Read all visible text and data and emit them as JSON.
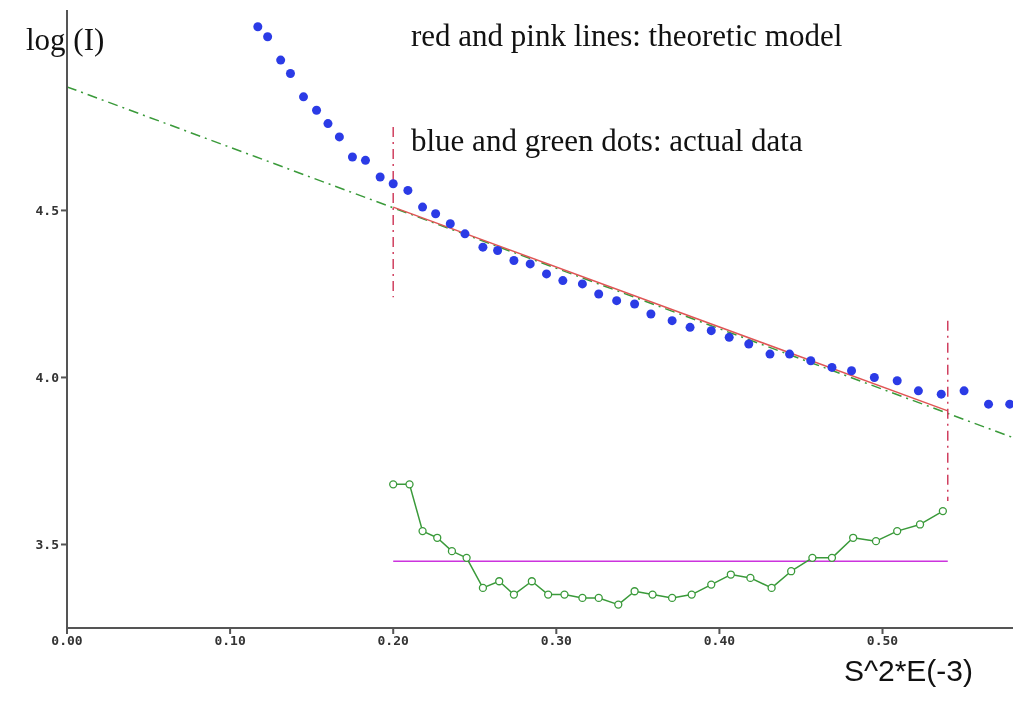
{
  "chart_data": {
    "type": "line",
    "xlabel": "S^2*E(-3)",
    "ylabel": "log (I)",
    "annotations": [
      "red and pink lines: theoretic model",
      "blue and green dots: actual data"
    ],
    "xlim": [
      0,
      0.58
    ],
    "ylim": [
      3.25,
      5.1
    ],
    "xticks": [
      {
        "value": 0,
        "label": "0.00"
      },
      {
        "value": 0.1,
        "label": "0.10"
      },
      {
        "value": 0.2,
        "label": "0.20"
      },
      {
        "value": 0.3,
        "label": "0.30"
      },
      {
        "value": 0.4,
        "label": "0.40"
      },
      {
        "value": 0.5,
        "label": "0.50"
      }
    ],
    "yticks": [
      3.5,
      {
        "value": 4,
        "label": "4.0"
      },
      4.5
    ],
    "grid": false,
    "series": [
      {
        "type": "line",
        "color": "#3a9a3a",
        "line_style": "dashed",
        "marker": "none",
        "x": [
          0,
          0.58
        ],
        "values": [
          4.87,
          3.82
        ]
      },
      {
        "type": "line",
        "color": "#e05555",
        "line_style": "solid",
        "marker": "none",
        "x": [
          0.2,
          0.54
        ],
        "values": [
          4.51,
          3.9
        ]
      },
      {
        "type": "line",
        "color": "#d04060",
        "line_style": "dashed",
        "marker": "none",
        "x": [
          0.2,
          0.2
        ],
        "values": [
          4.75,
          4.24
        ]
      },
      {
        "type": "line",
        "color": "#d04060",
        "line_style": "dashed",
        "marker": "none",
        "x": [
          0.54,
          0.54
        ],
        "values": [
          4.17,
          3.63
        ]
      },
      {
        "type": "line",
        "color": "#cc33dd",
        "line_style": "solid",
        "marker": "none",
        "x": [
          0.2,
          0.54
        ],
        "values": [
          3.45,
          3.45
        ]
      },
      {
        "type": "scatter",
        "color": "#2b3be6",
        "marker": "circle",
        "x": [
          0.117,
          0.123,
          0.131,
          0.137,
          0.145,
          0.153,
          0.16,
          0.167,
          0.175,
          0.183,
          0.192,
          0.2,
          0.209,
          0.218,
          0.226,
          0.235,
          0.244,
          0.255,
          0.264,
          0.274,
          0.284,
          0.294,
          0.304,
          0.316,
          0.326,
          0.337,
          0.348,
          0.358,
          0.371,
          0.382,
          0.395,
          0.406,
          0.418,
          0.431,
          0.443,
          0.456,
          0.469,
          0.481,
          0.495,
          0.509,
          0.522,
          0.536,
          0.55,
          0.565,
          0.578
        ],
        "values": [
          5.05,
          5.02,
          4.95,
          4.91,
          4.84,
          4.8,
          4.76,
          4.72,
          4.66,
          4.65,
          4.6,
          4.58,
          4.56,
          4.51,
          4.49,
          4.46,
          4.43,
          4.39,
          4.38,
          4.35,
          4.34,
          4.31,
          4.29,
          4.28,
          4.25,
          4.23,
          4.22,
          4.19,
          4.17,
          4.15,
          4.14,
          4.12,
          4.1,
          4.07,
          4.07,
          4.05,
          4.03,
          4.02,
          4.0,
          3.99,
          3.96,
          3.95,
          3.96,
          3.92,
          3.92
        ]
      },
      {
        "type": "line",
        "color": "#3a9a3a",
        "line_style": "solid",
        "marker": "circle",
        "x": [
          0.2,
          0.21,
          0.218,
          0.227,
          0.236,
          0.245,
          0.255,
          0.265,
          0.274,
          0.285,
          0.295,
          0.305,
          0.316,
          0.326,
          0.338,
          0.348,
          0.359,
          0.371,
          0.383,
          0.395,
          0.407,
          0.419,
          0.432,
          0.444,
          0.457,
          0.469,
          0.482,
          0.496,
          0.509,
          0.523,
          0.537
        ],
        "values": [
          3.68,
          3.68,
          3.54,
          3.52,
          3.48,
          3.46,
          3.37,
          3.39,
          3.35,
          3.39,
          3.35,
          3.35,
          3.34,
          3.34,
          3.32,
          3.36,
          3.35,
          3.34,
          3.35,
          3.38,
          3.41,
          3.4,
          3.37,
          3.42,
          3.46,
          3.46,
          3.52,
          3.51,
          3.54,
          3.56,
          3.6
        ]
      }
    ]
  }
}
